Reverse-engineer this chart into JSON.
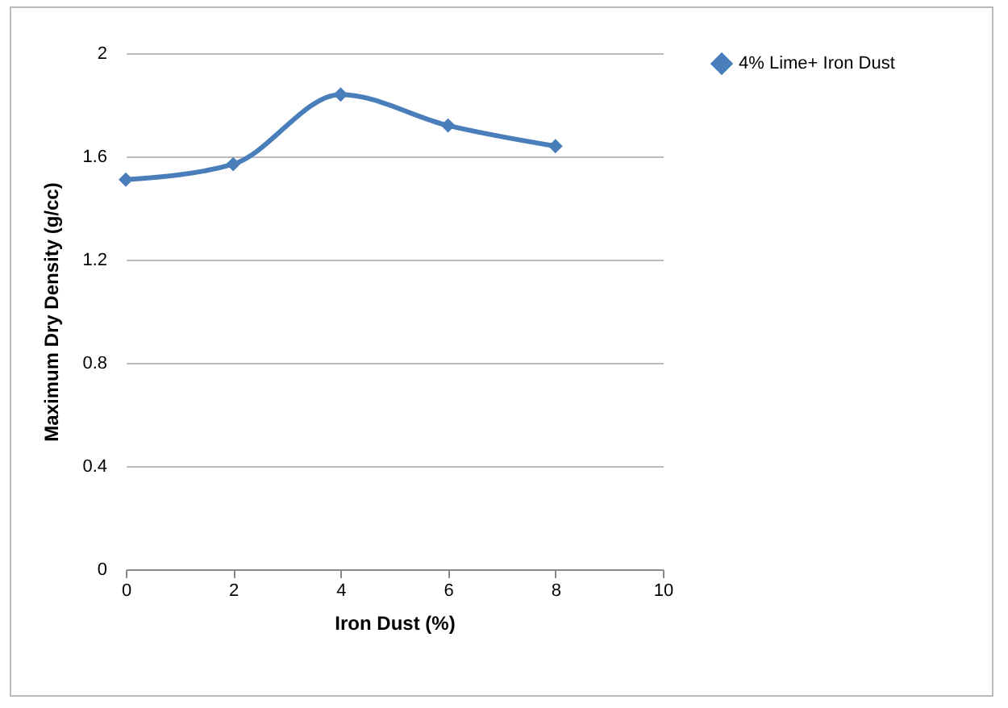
{
  "chart_data": {
    "type": "line",
    "xlabel": "Iron Dust (%)",
    "ylabel": "Maximum Dry Density (g/cc)",
    "x": [
      0,
      2,
      4,
      6,
      8
    ],
    "series": [
      {
        "name": "4% Lime+ Iron Dust",
        "color": "#4a7ebb",
        "values": [
          1.51,
          1.57,
          1.84,
          1.72,
          1.64
        ]
      }
    ],
    "xlim": [
      0,
      10
    ],
    "xticks": [
      0,
      2,
      4,
      6,
      8,
      10
    ],
    "ylim": [
      0,
      2
    ],
    "yticks": [
      0,
      0.4,
      0.8,
      1.2,
      1.6,
      2
    ],
    "grid": "y",
    "legend": "right",
    "marker": "diamond",
    "line_style": "solid"
  }
}
